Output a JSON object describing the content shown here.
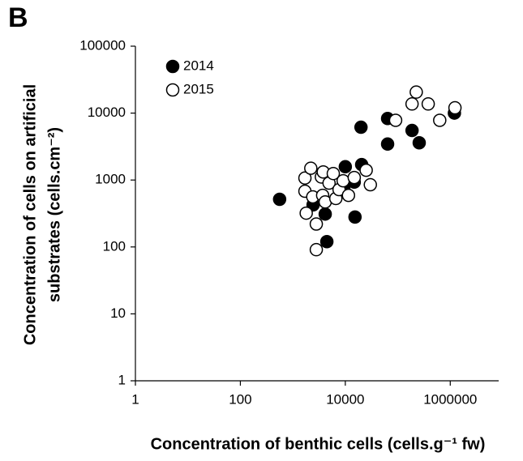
{
  "panel_label": "B",
  "chart_data": {
    "type": "scatter",
    "xlabel": "Concentration of benthic cells (cells.g⁻¹ fw)",
    "ylabel": [
      "Concentration of cells on artificial",
      "substrates (cells.cm⁻²)"
    ],
    "xlog": true,
    "ylog": true,
    "xlim": [
      1,
      10000000
    ],
    "ylim": [
      1,
      100000
    ],
    "xticks": [
      1,
      100,
      10000,
      1000000
    ],
    "yticks": [
      1,
      10,
      100,
      1000,
      10000,
      100000
    ],
    "legend": "upper left",
    "series": [
      {
        "name": "2014",
        "color": "#000000",
        "fill": "#000000",
        "x": [
          560,
          2430,
          4140,
          4450,
          9400,
          10000,
          14800,
          15300,
          20500,
          19900,
          64000,
          64000,
          187000,
          256000,
          1200000
        ],
        "values": [
          515,
          425,
          310,
          120,
          720,
          1580,
          930,
          280,
          1700,
          6150,
          8300,
          3450,
          5500,
          3600,
          10000
        ]
      },
      {
        "name": "2015",
        "color": "#000000",
        "fill": "#ffffff",
        "x": [
          1700,
          1700,
          1800,
          2200,
          2400,
          2800,
          2800,
          3500,
          3700,
          3800,
          4140,
          4900,
          5900,
          6600,
          7600,
          9100,
          11500,
          14800,
          25000,
          30000,
          91000,
          187000,
          225000,
          380000,
          630000,
          1230000
        ],
        "values": [
          1070,
          680,
          320,
          1500,
          560,
          220,
          91,
          1110,
          590,
          1320,
          470,
          900,
          1250,
          530,
          720,
          975,
          590,
          1090,
          1400,
          850,
          7800,
          13700,
          20600,
          13700,
          7800,
          12000
        ]
      }
    ]
  }
}
